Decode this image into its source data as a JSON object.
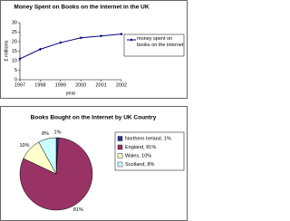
{
  "chart_data": [
    {
      "type": "line",
      "title": "Money Spent on Books on the Internet in the UK",
      "y_label": "£ millions",
      "x_label": "year",
      "categories": [
        "1997",
        "1998",
        "1999",
        "2000",
        "2001",
        "2002"
      ],
      "series": [
        {
          "name": "money spent on books on the internet",
          "color": "#000080",
          "values": [
            11,
            16,
            19.5,
            22,
            23,
            24
          ]
        }
      ],
      "ylim": [
        0,
        30
      ],
      "yticks": [
        0,
        5,
        10,
        15,
        20,
        25,
        30
      ],
      "grid": false,
      "legend": "right"
    },
    {
      "type": "pie",
      "title": "Books Bought on the Internet by UK Country",
      "categories": [
        "Northern Ireland, 1%",
        "England, 81%",
        "Wales, 10%",
        "Scotland, 8%"
      ],
      "values": [
        1,
        81,
        10,
        8
      ],
      "value_labels": [
        "1%",
        "81%",
        "10%",
        "8%"
      ],
      "colors": [
        "#333399",
        "#993366",
        "#ffffcc",
        "#ccffff"
      ],
      "legend": "right"
    }
  ]
}
